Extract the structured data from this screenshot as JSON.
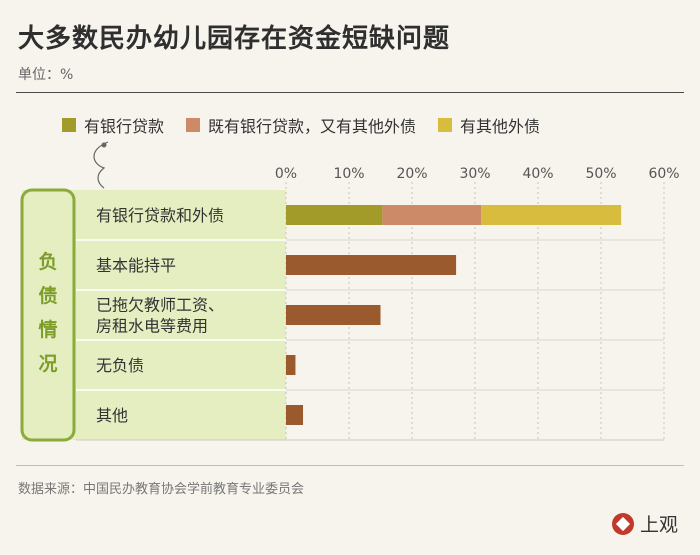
{
  "title": "大多数民办幼儿园存在资金短缺问题",
  "unit": "单位：%",
  "source": "数据来源：中国民办教育协会学前教育专业委员会",
  "brand": "上观",
  "colors": {
    "bank": "#a29b2a",
    "both": "#cd8a68",
    "other_debt": "#d8bc3e",
    "single": "#9a5a2e",
    "panel_fill": "#e4eec0",
    "panel_border": "#8aaa3a"
  },
  "chart_data": {
    "type": "bar",
    "orientation": "horizontal",
    "stacked": true,
    "group_label": "负债情况",
    "categories": [
      "有银行贷款和外债",
      "基本能持平",
      "已拖欠教师工资、\n房租水电等费用",
      "无负债",
      "其他"
    ],
    "xlim": [
      0,
      60
    ],
    "x_ticks": [
      "0%",
      "10%",
      "20%",
      "30%",
      "40%",
      "50%",
      "60%"
    ],
    "grid": true,
    "legend_position": "top",
    "series": [
      {
        "name": "有银行贷款",
        "color": "#a29b2a",
        "values": [
          15.3,
          null,
          null,
          null,
          null
        ]
      },
      {
        "name": "既有银行贷款，又有其他外债",
        "color": "#cd8a68",
        "values": [
          15.7,
          null,
          null,
          null,
          null
        ]
      },
      {
        "name": "有其他外债",
        "color": "#d8bc3e",
        "values": [
          22.2,
          null,
          null,
          null,
          null
        ]
      },
      {
        "color": "#9a5a2e",
        "values": [
          null,
          27.0,
          15.0,
          1.5,
          2.7
        ]
      }
    ]
  }
}
